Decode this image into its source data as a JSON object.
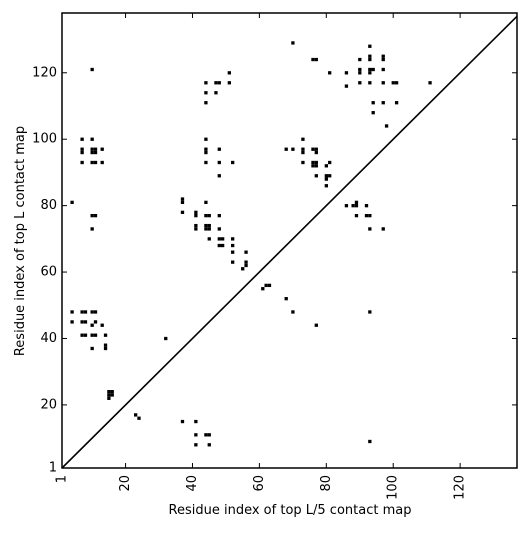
{
  "chart_data": {
    "type": "scatter",
    "title": "",
    "xlabel": "Residue index of top L/5 contact map",
    "ylabel": "Residue index of top L contact map",
    "xlim": [
      1,
      137
    ],
    "ylim": [
      1,
      138
    ],
    "xticks": [
      1,
      20,
      40,
      60,
      80,
      100,
      120
    ],
    "yticks": [
      1,
      20,
      40,
      60,
      80,
      100,
      120
    ],
    "xtick_labels": [
      "1",
      "20",
      "40",
      "60",
      "80",
      "100",
      "120"
    ],
    "ytick_labels": [
      "1",
      "20",
      "40",
      "60",
      "80",
      "100",
      "120"
    ],
    "grid": false,
    "marker_color": "#000000",
    "diagonal": true,
    "series": [
      {
        "points": [
          [
            4,
            81
          ],
          [
            4,
            48
          ],
          [
            4,
            45
          ],
          [
            7,
            48
          ],
          [
            7,
            45
          ],
          [
            7,
            41
          ],
          [
            8,
            48
          ],
          [
            8,
            45
          ],
          [
            8,
            41
          ],
          [
            10,
            48
          ],
          [
            10,
            44
          ],
          [
            10,
            41
          ],
          [
            10,
            37
          ],
          [
            11,
            48
          ],
          [
            11,
            45
          ],
          [
            11,
            41
          ],
          [
            13,
            44
          ],
          [
            14,
            41
          ],
          [
            14,
            38
          ],
          [
            14,
            37
          ],
          [
            15,
            24
          ],
          [
            15,
            23
          ],
          [
            15,
            22
          ],
          [
            16,
            24
          ],
          [
            16,
            23
          ],
          [
            7,
            100
          ],
          [
            7,
            97
          ],
          [
            7,
            96
          ],
          [
            7,
            93
          ],
          [
            10,
            100
          ],
          [
            10,
            97
          ],
          [
            10,
            96
          ],
          [
            10,
            93
          ],
          [
            11,
            97
          ],
          [
            11,
            96
          ],
          [
            11,
            93
          ],
          [
            13,
            97
          ],
          [
            13,
            93
          ],
          [
            10,
            121
          ],
          [
            10,
            77
          ],
          [
            11,
            77
          ],
          [
            10,
            73
          ],
          [
            23,
            17
          ],
          [
            24,
            16
          ],
          [
            32,
            40
          ],
          [
            37,
            82
          ],
          [
            37,
            81
          ],
          [
            37,
            78
          ],
          [
            37,
            15
          ],
          [
            41,
            78
          ],
          [
            41,
            77
          ],
          [
            41,
            74
          ],
          [
            41,
            73
          ],
          [
            41,
            15
          ],
          [
            41,
            11
          ],
          [
            41,
            8
          ],
          [
            44,
            117
          ],
          [
            44,
            114
          ],
          [
            44,
            111
          ],
          [
            44,
            100
          ],
          [
            44,
            97
          ],
          [
            44,
            96
          ],
          [
            44,
            93
          ],
          [
            44,
            81
          ],
          [
            44,
            77
          ],
          [
            44,
            74
          ],
          [
            44,
            73
          ],
          [
            44,
            11
          ],
          [
            45,
            77
          ],
          [
            45,
            74
          ],
          [
            45,
            73
          ],
          [
            45,
            70
          ],
          [
            45,
            11
          ],
          [
            45,
            8
          ],
          [
            47,
            117
          ],
          [
            47,
            114
          ],
          [
            48,
            117
          ],
          [
            48,
            97
          ],
          [
            48,
            93
          ],
          [
            48,
            89
          ],
          [
            48,
            77
          ],
          [
            48,
            73
          ],
          [
            48,
            70
          ],
          [
            48,
            68
          ],
          [
            49,
            70
          ],
          [
            49,
            68
          ],
          [
            51,
            120
          ],
          [
            51,
            117
          ],
          [
            52,
            93
          ],
          [
            52,
            70
          ],
          [
            52,
            68
          ],
          [
            52,
            66
          ],
          [
            52,
            63
          ],
          [
            55,
            61
          ],
          [
            56,
            66
          ],
          [
            56,
            63
          ],
          [
            56,
            62
          ],
          [
            61,
            55
          ],
          [
            62,
            56
          ],
          [
            63,
            56
          ],
          [
            68,
            97
          ],
          [
            68,
            52
          ],
          [
            70,
            129
          ],
          [
            70,
            97
          ],
          [
            70,
            48
          ],
          [
            73,
            100
          ],
          [
            73,
            97
          ],
          [
            73,
            96
          ],
          [
            73,
            93
          ],
          [
            76,
            124
          ],
          [
            76,
            97
          ],
          [
            76,
            93
          ],
          [
            76,
            92
          ],
          [
            77,
            124
          ],
          [
            77,
            97
          ],
          [
            77,
            96
          ],
          [
            77,
            93
          ],
          [
            77,
            92
          ],
          [
            77,
            89
          ],
          [
            77,
            44
          ],
          [
            80,
            92
          ],
          [
            80,
            89
          ],
          [
            80,
            88
          ],
          [
            80,
            86
          ],
          [
            81,
            120
          ],
          [
            81,
            93
          ],
          [
            81,
            89
          ],
          [
            86,
            120
          ],
          [
            86,
            116
          ],
          [
            86,
            80
          ],
          [
            88,
            80
          ],
          [
            89,
            81
          ],
          [
            89,
            80
          ],
          [
            89,
            77
          ],
          [
            90,
            124
          ],
          [
            90,
            121
          ],
          [
            90,
            120
          ],
          [
            90,
            117
          ],
          [
            92,
            80
          ],
          [
            92,
            77
          ],
          [
            93,
            128
          ],
          [
            93,
            125
          ],
          [
            93,
            124
          ],
          [
            93,
            121
          ],
          [
            93,
            120
          ],
          [
            93,
            117
          ],
          [
            93,
            77
          ],
          [
            93,
            73
          ],
          [
            93,
            48
          ],
          [
            93,
            9
          ],
          [
            94,
            121
          ],
          [
            94,
            111
          ],
          [
            94,
            108
          ],
          [
            97,
            125
          ],
          [
            97,
            124
          ],
          [
            97,
            121
          ],
          [
            97,
            117
          ],
          [
            97,
            111
          ],
          [
            97,
            73
          ],
          [
            98,
            104
          ],
          [
            100,
            117
          ],
          [
            101,
            117
          ],
          [
            101,
            111
          ],
          [
            111,
            117
          ]
        ]
      }
    ]
  }
}
